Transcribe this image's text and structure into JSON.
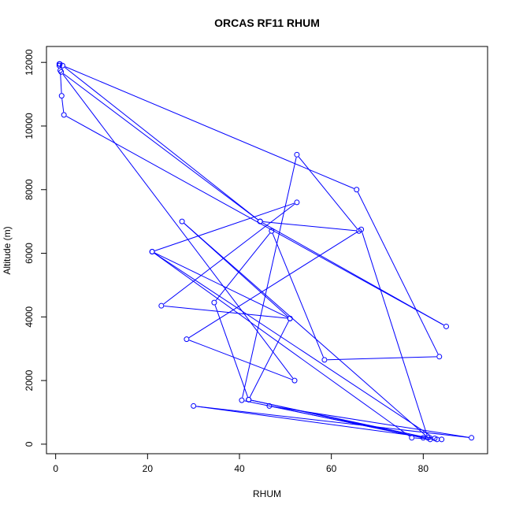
{
  "chart_data": {
    "type": "line",
    "title": "ORCAS RF11 RHUM",
    "xlabel": "RHUM",
    "ylabel": "Altitude (m)",
    "xlim": [
      -2,
      94
    ],
    "ylim": [
      -300,
      12500
    ],
    "xticks": [
      0,
      20,
      40,
      60,
      80
    ],
    "yticks": [
      0,
      2000,
      4000,
      6000,
      8000,
      10000,
      12000
    ],
    "grid": false,
    "color": "#0000ff",
    "series": [
      {
        "points": [
          [
            0.8,
            11950
          ],
          [
            0.9,
            11950
          ],
          [
            0.8,
            11900
          ],
          [
            1.0,
            11750
          ],
          [
            1.3,
            10950
          ],
          [
            1.8,
            10350
          ],
          [
            85.0,
            3700
          ],
          [
            44.5,
            7000
          ],
          [
            1.2,
            11700
          ],
          [
            52.0,
            2000
          ],
          [
            28.5,
            3300
          ],
          [
            66.5,
            6750
          ],
          [
            81.0,
            200
          ],
          [
            42.0,
            1400
          ],
          [
            51.0,
            3950
          ],
          [
            21.0,
            6050
          ],
          [
            82.5,
            180
          ],
          [
            30.0,
            1200
          ],
          [
            90.5,
            200
          ],
          [
            46.5,
            1200
          ],
          [
            80.0,
            200
          ],
          [
            40.5,
            1380
          ],
          [
            52.5,
            9100
          ],
          [
            66.0,
            6700
          ],
          [
            44.5,
            7000
          ],
          [
            1.5,
            11900
          ],
          [
            65.5,
            8000
          ],
          [
            83.5,
            2750
          ],
          [
            58.5,
            2650
          ],
          [
            47.0,
            6700
          ],
          [
            34.5,
            4450
          ],
          [
            42.0,
            1400
          ],
          [
            81.5,
            150
          ],
          [
            27.5,
            7000
          ],
          [
            51.0,
            3950
          ],
          [
            23.0,
            4350
          ],
          [
            52.5,
            7600
          ],
          [
            21.0,
            6050
          ],
          [
            77.5,
            200
          ],
          [
            83.0,
            150
          ],
          [
            84.0,
            150
          ]
        ]
      }
    ]
  }
}
